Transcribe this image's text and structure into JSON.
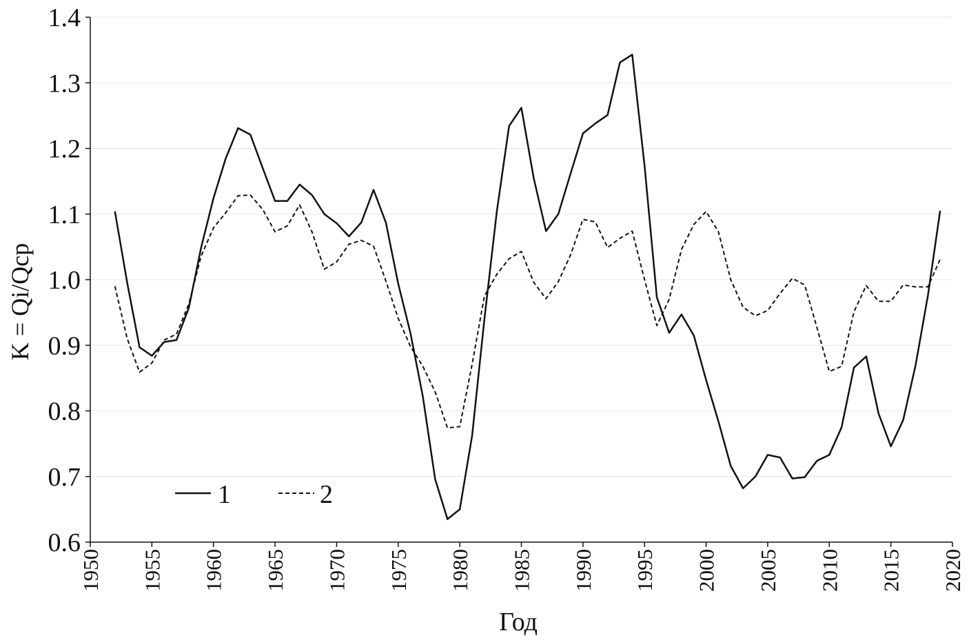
{
  "chart_data": {
    "type": "line",
    "xlabel": "Год",
    "ylabel": "K = Qi/Qcp",
    "xlim": [
      1950,
      2020
    ],
    "ylim": [
      0.6,
      1.4
    ],
    "xticks": [
      1950,
      1955,
      1960,
      1965,
      1970,
      1975,
      1980,
      1985,
      1990,
      1995,
      2000,
      2005,
      2010,
      2015,
      2020
    ],
    "yticks": [
      0.6,
      0.7,
      0.8,
      0.9,
      1.0,
      1.1,
      1.2,
      1.3,
      1.4
    ],
    "ytick_labels": [
      "0.6",
      "0.7",
      "0.8",
      "0.9",
      "1.0",
      "1.1",
      "1.2",
      "1.3",
      "1.4"
    ],
    "grid": "horizontal",
    "legend_position": "bottom-left",
    "x": [
      1952,
      1953,
      1954,
      1955,
      1956,
      1957,
      1958,
      1959,
      1960,
      1961,
      1962,
      1963,
      1964,
      1965,
      1966,
      1967,
      1968,
      1969,
      1970,
      1971,
      1972,
      1973,
      1974,
      1975,
      1976,
      1977,
      1978,
      1979,
      1980,
      1981,
      1982,
      1983,
      1984,
      1985,
      1986,
      1987,
      1988,
      1989,
      1990,
      1991,
      1992,
      1993,
      1994,
      1995,
      1996,
      1997,
      1998,
      1999,
      2000,
      2001,
      2002,
      2003,
      2004,
      2005,
      2006,
      2007,
      2008,
      2009,
      2010,
      2011,
      2012,
      2013,
      2014,
      2015,
      2016,
      2017,
      2018,
      2019
    ],
    "series": [
      {
        "name": "1",
        "style": "solid",
        "color": "#111111",
        "values": [
          1.104,
          0.995,
          0.897,
          0.884,
          0.905,
          0.908,
          0.957,
          1.049,
          1.124,
          1.185,
          1.231,
          1.221,
          1.17,
          1.12,
          1.12,
          1.145,
          1.129,
          1.1,
          1.086,
          1.066,
          1.087,
          1.137,
          1.087,
          0.994,
          0.918,
          0.822,
          0.696,
          0.635,
          0.65,
          0.762,
          0.94,
          1.103,
          1.234,
          1.262,
          1.155,
          1.074,
          1.1,
          1.162,
          1.223,
          1.238,
          1.251,
          1.331,
          1.343,
          1.174,
          0.973,
          0.919,
          0.947,
          0.915,
          0.847,
          0.784,
          0.716,
          0.682,
          0.7,
          0.733,
          0.729,
          0.697,
          0.699,
          0.724,
          0.733,
          0.775,
          0.866,
          0.883,
          0.796,
          0.746,
          0.786,
          0.869,
          0.975,
          1.105
        ]
      },
      {
        "name": "2",
        "style": "dashed",
        "color": "#111111",
        "values": [
          0.99,
          0.91,
          0.859,
          0.873,
          0.908,
          0.917,
          0.963,
          1.036,
          1.079,
          1.102,
          1.128,
          1.129,
          1.107,
          1.073,
          1.082,
          1.114,
          1.073,
          1.016,
          1.027,
          1.054,
          1.06,
          1.051,
          0.998,
          0.941,
          0.898,
          0.868,
          0.829,
          0.774,
          0.776,
          0.871,
          0.975,
          1.008,
          1.032,
          1.043,
          0.996,
          0.971,
          0.997,
          1.038,
          1.092,
          1.088,
          1.049,
          1.063,
          1.074,
          1.0,
          0.93,
          0.97,
          1.046,
          1.084,
          1.104,
          1.073,
          1.0,
          0.958,
          0.945,
          0.953,
          0.979,
          1.002,
          0.992,
          0.927,
          0.86,
          0.868,
          0.951,
          0.991,
          0.967,
          0.967,
          0.992,
          0.989,
          0.989,
          1.031
        ]
      }
    ]
  }
}
